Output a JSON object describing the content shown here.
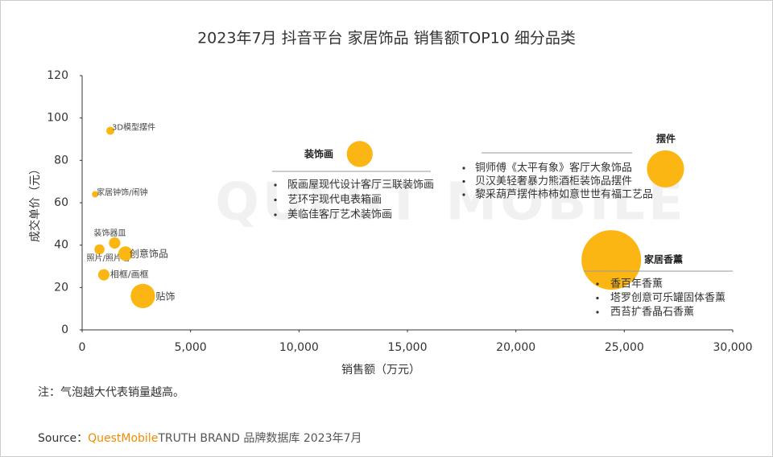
{
  "chart_data": {
    "type": "bubble",
    "title": "2023年7月 抖音平台 家居饰品 销售额TOP10 细分品类",
    "x_label": "销售额（万元）",
    "y_label": "成交单价（元）",
    "labels": [
      "3D模型摆件",
      "家居钟饰/闹钟",
      "装饰器皿",
      "照片/照片墙",
      "创意饰品",
      "相框/画框",
      "贴饰",
      "装饰画",
      "摆件",
      "家居香薰"
    ],
    "x": [
      1300,
      600,
      1500,
      800,
      2000,
      1000,
      2800,
      12800,
      26900,
      24400
    ],
    "values": [
      94,
      64,
      41,
      38,
      36,
      26,
      16,
      83,
      76,
      33
    ],
    "sizes": [
      2.5,
      1.6,
      5,
      4,
      8,
      5,
      23,
      26,
      53,
      137
    ],
    "color": "#fbb614",
    "xlim": [
      0,
      30000
    ],
    "ylim": [
      0,
      120
    ],
    "xticks": [
      0,
      {
        "value": 5000,
        "label": "5,000"
      },
      {
        "value": 10000,
        "label": "10,000"
      },
      {
        "value": 15000,
        "label": "15,000"
      },
      {
        "value": 20000,
        "label": "20,000"
      },
      {
        "value": 25000,
        "label": "25,000"
      },
      {
        "value": 30000,
        "label": "30,000"
      }
    ],
    "yticks": [
      0,
      20,
      40,
      60,
      80,
      100,
      120
    ],
    "callouts": [
      {
        "title": "装饰画",
        "items": [
          "阪画屋现代设计客厅三联装饰画",
          "艺环宇现代电表箱画",
          "美临佳客厅艺术装饰画"
        ]
      },
      {
        "title": "摆件",
        "items": [
          "铜师傅《太平有象》客厅大象饰品",
          "贝汉美轻奢暴力熊酒柜装饰品摆件",
          "黎采葫芦摆件柿柿如意世世有福工艺品"
        ]
      },
      {
        "title": "家居香薰",
        "items": [
          "香百年香薰",
          "塔罗创意可乐罐固体香薰",
          "西苔扩香晶石香薰"
        ]
      }
    ],
    "note": "注：气泡越大代表销量越高。",
    "watermark": "QUEST MOBILE",
    "source": {
      "prefix": "Source：",
      "brand": "QuestMobile",
      "text": "TRUTH BRAND 品牌数据库 2023年7月"
    }
  }
}
